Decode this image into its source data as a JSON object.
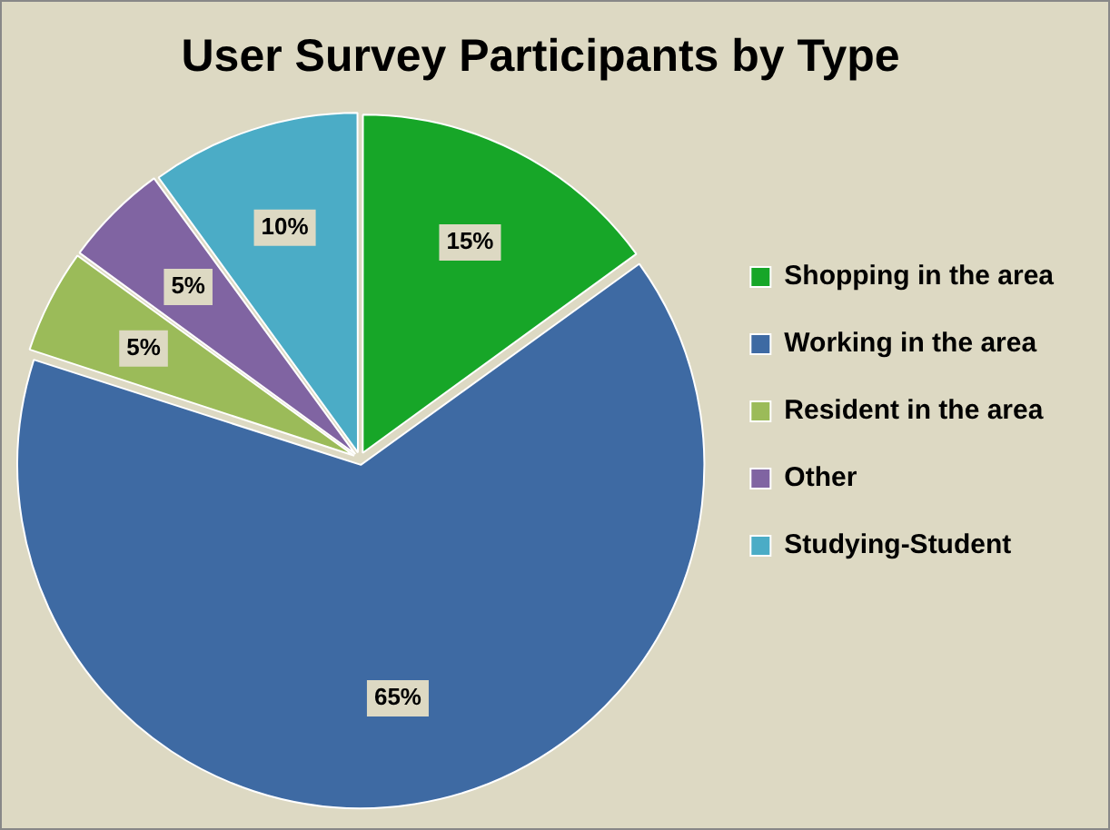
{
  "chart_data": {
    "type": "pie",
    "title": "User Survey Participants by Type",
    "categories": [
      "Shopping in the area",
      "Working in the area",
      "Resident in the area",
      "Other",
      "Studying-Student"
    ],
    "values": [
      15,
      65,
      5,
      5,
      10
    ],
    "colors": [
      "#17a628",
      "#3e6aa3",
      "#9bbb59",
      "#8064a2",
      "#4bacc6"
    ],
    "value_labels": [
      "15%",
      "65%",
      "5%",
      "5%",
      "10%"
    ],
    "legend": "right"
  }
}
